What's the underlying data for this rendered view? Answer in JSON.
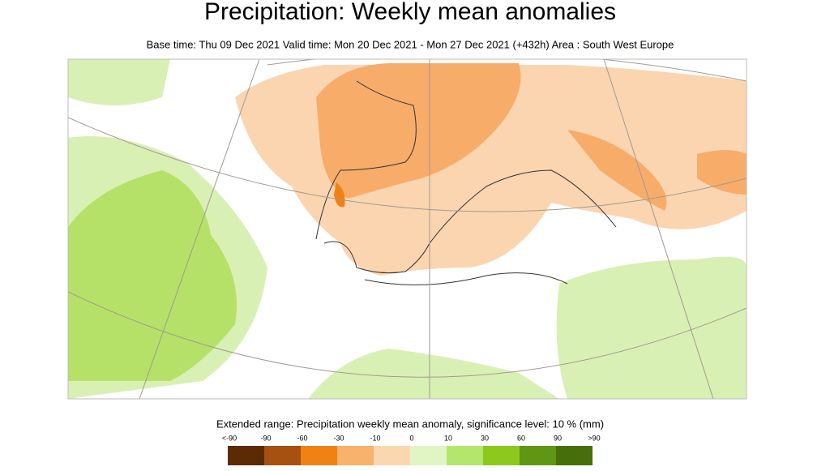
{
  "header": {
    "title": "Precipitation: Weekly mean anomalies",
    "subtitle": "Base time: Thu 09 Dec 2021 Valid time: Mon 20 Dec 2021 - Mon 27 Dec 2021 (+432h) Area : South West Europe"
  },
  "legend": {
    "title": "Extended range: Precipitation weekly mean anomaly, significance level: 10 % (mm)",
    "labels": [
      "<-90",
      "-90",
      "-60",
      "-30",
      "-10",
      "0",
      "10",
      "30",
      "60",
      "90",
      ">90"
    ],
    "colors": [
      "#5c2a05",
      "#a65012",
      "#f08214",
      "#f7b26b",
      "#fbd7b0",
      "#e1f5c4",
      "#b4e66e",
      "#8cc81e",
      "#5f9614",
      "#466e0a"
    ]
  }
}
